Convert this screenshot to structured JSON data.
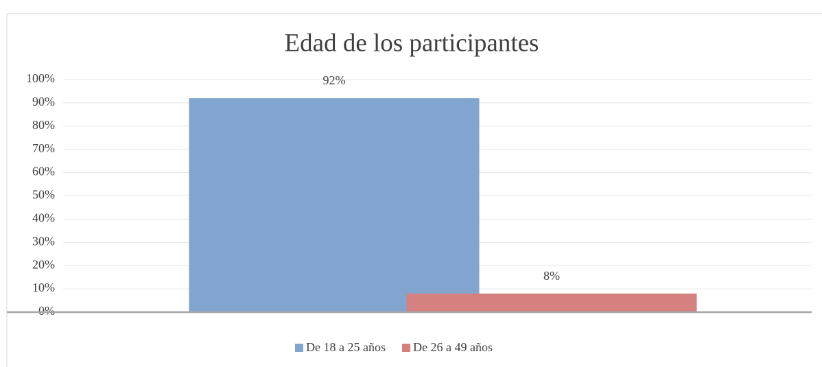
{
  "chart_data": {
    "type": "bar",
    "title": "Edad de los participantes",
    "categories": [
      null
    ],
    "series": [
      {
        "name": "De 18 a 25 años",
        "color": "#82a5cf",
        "values": [
          92
        ],
        "value_labels": [
          "92%"
        ]
      },
      {
        "name": "De 26 a 49 años",
        "color": "#d48180",
        "values": [
          8
        ],
        "value_labels": [
          "8%"
        ]
      }
    ],
    "ylim": [
      0,
      100
    ],
    "yticks": [
      {
        "value": 0,
        "label": "0%"
      },
      {
        "value": 10,
        "label": "10%"
      },
      {
        "value": 20,
        "label": "20%"
      },
      {
        "value": 30,
        "label": "30%"
      },
      {
        "value": 40,
        "label": "40%"
      },
      {
        "value": 50,
        "label": "50%"
      },
      {
        "value": 60,
        "label": "60%"
      },
      {
        "value": 70,
        "label": "70%"
      },
      {
        "value": 80,
        "label": "80%"
      },
      {
        "value": 90,
        "label": "90%"
      },
      {
        "value": 100,
        "label": "100%"
      }
    ],
    "grid": true,
    "legend": "bottom"
  }
}
